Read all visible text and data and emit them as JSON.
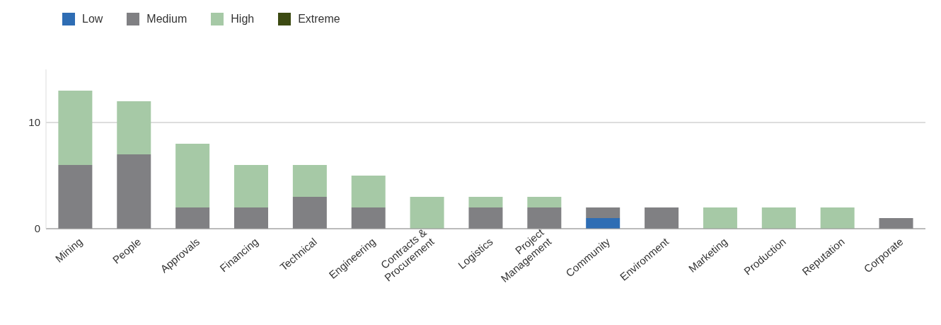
{
  "chart_data": {
    "type": "bar",
    "stacked": true,
    "categories": [
      "Mining",
      "People",
      "Approvals",
      "Financing",
      "Technical",
      "Engineering",
      "Contracts & Procurement",
      "Logistics",
      "Project Management",
      "Community",
      "Environment",
      "Marketing",
      "Production",
      "Reputation",
      "Corporate"
    ],
    "series": [
      {
        "name": "Low",
        "color": "#2e6db4",
        "values": [
          null,
          null,
          null,
          null,
          null,
          null,
          null,
          null,
          null,
          1,
          null,
          null,
          null,
          null,
          null
        ]
      },
      {
        "name": "Medium",
        "color": "#808083",
        "values": [
          6,
          7,
          2,
          2,
          3,
          2,
          null,
          2,
          2,
          1,
          2,
          null,
          null,
          null,
          1
        ]
      },
      {
        "name": "High",
        "color": "#a6c9a6",
        "values": [
          7,
          5,
          6,
          4,
          3,
          3,
          3,
          1,
          1,
          null,
          null,
          2,
          2,
          2,
          null
        ]
      },
      {
        "name": "Extreme",
        "color": "#3c4a12",
        "values": [
          null,
          null,
          null,
          null,
          null,
          null,
          null,
          null,
          null,
          null,
          null,
          null,
          null,
          null,
          null
        ]
      }
    ],
    "ylim": [
      0,
      15
    ],
    "yticks": [
      0,
      10
    ],
    "grid": "y",
    "legend": "top left"
  }
}
